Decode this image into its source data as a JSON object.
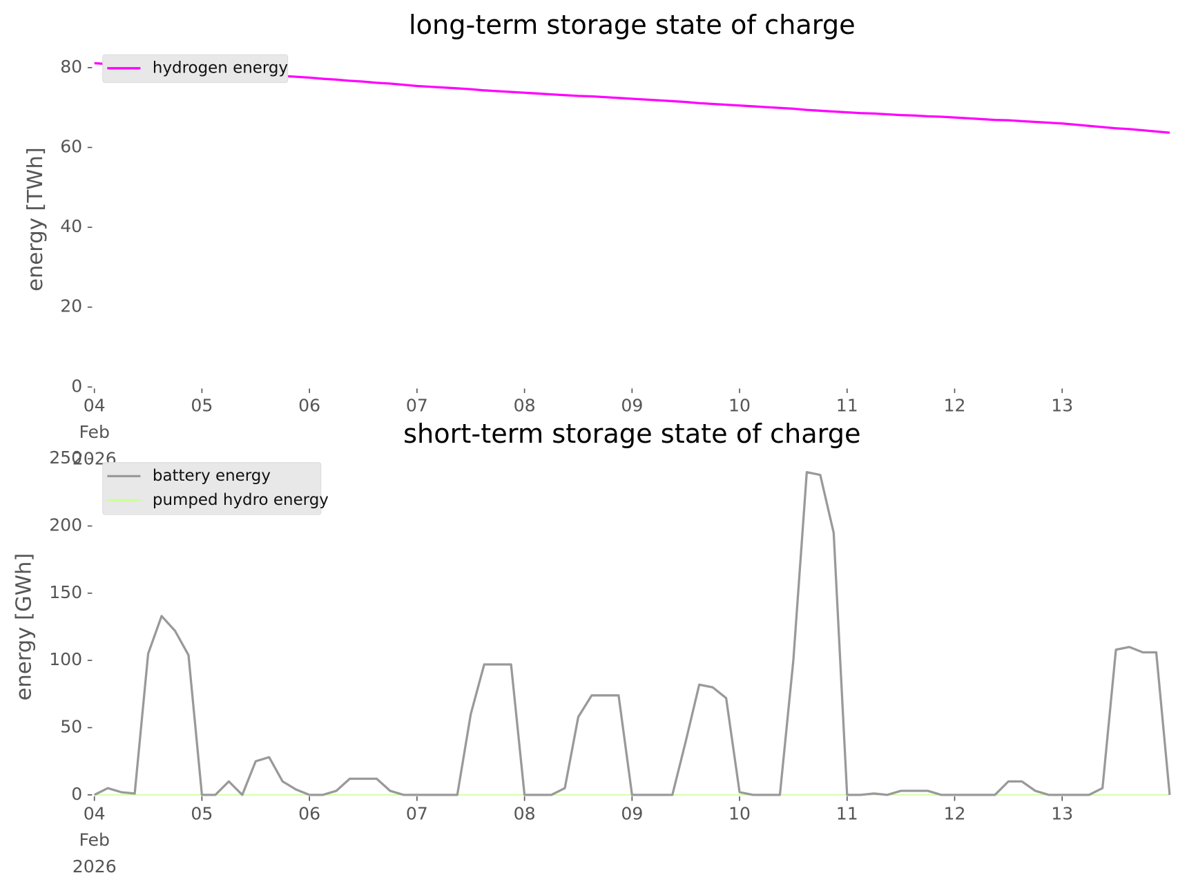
{
  "chart_data": [
    {
      "type": "line",
      "title": "long-term storage state of charge",
      "ylabel": "energy [TWh]",
      "x": [
        "2026-02-04T00:00",
        "2026-02-04T03:00",
        "2026-02-04T06:00",
        "2026-02-04T09:00",
        "2026-02-04T12:00",
        "2026-02-04T15:00",
        "2026-02-04T18:00",
        "2026-02-04T21:00",
        "2026-02-05T00:00",
        "2026-02-05T03:00",
        "2026-02-05T06:00",
        "2026-02-05T09:00",
        "2026-02-05T12:00",
        "2026-02-05T15:00",
        "2026-02-05T18:00",
        "2026-02-05T21:00",
        "2026-02-06T00:00",
        "2026-02-06T03:00",
        "2026-02-06T06:00",
        "2026-02-06T09:00",
        "2026-02-06T12:00",
        "2026-02-06T15:00",
        "2026-02-06T18:00",
        "2026-02-06T21:00",
        "2026-02-07T00:00",
        "2026-02-07T03:00",
        "2026-02-07T06:00",
        "2026-02-07T09:00",
        "2026-02-07T12:00",
        "2026-02-07T15:00",
        "2026-02-07T18:00",
        "2026-02-07T21:00",
        "2026-02-08T00:00",
        "2026-02-08T03:00",
        "2026-02-08T06:00",
        "2026-02-08T09:00",
        "2026-02-08T12:00",
        "2026-02-08T15:00",
        "2026-02-08T18:00",
        "2026-02-08T21:00",
        "2026-02-09T00:00",
        "2026-02-09T03:00",
        "2026-02-09T06:00",
        "2026-02-09T09:00",
        "2026-02-09T12:00",
        "2026-02-09T15:00",
        "2026-02-09T18:00",
        "2026-02-09T21:00",
        "2026-02-10T00:00",
        "2026-02-10T03:00",
        "2026-02-10T06:00",
        "2026-02-10T09:00",
        "2026-02-10T12:00",
        "2026-02-10T15:00",
        "2026-02-10T18:00",
        "2026-02-10T21:00",
        "2026-02-11T00:00",
        "2026-02-11T03:00",
        "2026-02-11T06:00",
        "2026-02-11T09:00",
        "2026-02-11T12:00",
        "2026-02-11T15:00",
        "2026-02-11T18:00",
        "2026-02-11T21:00",
        "2026-02-12T00:00",
        "2026-02-12T03:00",
        "2026-02-12T06:00",
        "2026-02-12T09:00",
        "2026-02-12T12:00",
        "2026-02-12T15:00",
        "2026-02-12T18:00",
        "2026-02-12T21:00",
        "2026-02-13T00:00",
        "2026-02-13T03:00",
        "2026-02-13T06:00",
        "2026-02-13T09:00",
        "2026-02-13T12:00",
        "2026-02-13T15:00",
        "2026-02-13T18:00",
        "2026-02-13T21:00",
        "2026-02-14T00:00"
      ],
      "series": [
        {
          "name": "hydrogen energy",
          "color": "#ff00ff",
          "values": [
            81.1,
            80.9,
            80.6,
            80.4,
            80.2,
            79.9,
            79.7,
            79.4,
            79.2,
            79.0,
            78.8,
            78.6,
            78.4,
            78.1,
            77.9,
            77.7,
            77.5,
            77.2,
            77.0,
            76.7,
            76.5,
            76.2,
            76.0,
            75.7,
            75.4,
            75.2,
            75.0,
            74.8,
            74.6,
            74.3,
            74.1,
            73.9,
            73.7,
            73.5,
            73.3,
            73.1,
            72.9,
            72.8,
            72.6,
            72.4,
            72.2,
            72.0,
            71.8,
            71.6,
            71.4,
            71.1,
            70.9,
            70.7,
            70.5,
            70.3,
            70.1,
            69.9,
            69.7,
            69.4,
            69.2,
            69.0,
            68.8,
            68.6,
            68.5,
            68.3,
            68.1,
            68.0,
            67.8,
            67.7,
            67.5,
            67.3,
            67.1,
            66.9,
            66.8,
            66.6,
            66.4,
            66.2,
            66.0,
            65.7,
            65.4,
            65.1,
            64.8,
            64.6,
            64.3,
            64.0,
            63.7
          ]
        }
      ],
      "xlim": [
        "2026-02-04T00:00",
        "2026-02-14T00:00"
      ],
      "xticks": [
        {
          "value": "2026-02-04T00:00",
          "label": "04 Feb 2026"
        },
        {
          "value": "2026-02-05T00:00",
          "label": "05"
        },
        {
          "value": "2026-02-06T00:00",
          "label": "06"
        },
        {
          "value": "2026-02-07T00:00",
          "label": "07"
        },
        {
          "value": "2026-02-08T00:00",
          "label": "08"
        },
        {
          "value": "2026-02-09T00:00",
          "label": "09"
        },
        {
          "value": "2026-02-10T00:00",
          "label": "10"
        },
        {
          "value": "2026-02-11T00:00",
          "label": "11"
        },
        {
          "value": "2026-02-12T00:00",
          "label": "12"
        },
        {
          "value": "2026-02-13T00:00",
          "label": "13"
        }
      ],
      "ylim": [
        0,
        84
      ],
      "yticks": [
        0,
        20,
        40,
        60,
        80
      ],
      "grid": false,
      "legend": "upper left"
    },
    {
      "type": "line",
      "title": "short-term storage state of charge",
      "ylabel": "energy [GWh]",
      "x": [
        "2026-02-04T00:00",
        "2026-02-04T03:00",
        "2026-02-04T06:00",
        "2026-02-04T09:00",
        "2026-02-04T12:00",
        "2026-02-04T15:00",
        "2026-02-04T18:00",
        "2026-02-04T21:00",
        "2026-02-05T00:00",
        "2026-02-05T03:00",
        "2026-02-05T06:00",
        "2026-02-05T09:00",
        "2026-02-05T12:00",
        "2026-02-05T15:00",
        "2026-02-05T18:00",
        "2026-02-05T21:00",
        "2026-02-06T00:00",
        "2026-02-06T03:00",
        "2026-02-06T06:00",
        "2026-02-06T09:00",
        "2026-02-06T12:00",
        "2026-02-06T15:00",
        "2026-02-06T18:00",
        "2026-02-06T21:00",
        "2026-02-07T00:00",
        "2026-02-07T03:00",
        "2026-02-07T06:00",
        "2026-02-07T09:00",
        "2026-02-07T12:00",
        "2026-02-07T15:00",
        "2026-02-07T18:00",
        "2026-02-07T21:00",
        "2026-02-08T00:00",
        "2026-02-08T03:00",
        "2026-02-08T06:00",
        "2026-02-08T09:00",
        "2026-02-08T12:00",
        "2026-02-08T15:00",
        "2026-02-08T18:00",
        "2026-02-08T21:00",
        "2026-02-09T00:00",
        "2026-02-09T03:00",
        "2026-02-09T06:00",
        "2026-02-09T09:00",
        "2026-02-09T12:00",
        "2026-02-09T15:00",
        "2026-02-09T18:00",
        "2026-02-09T21:00",
        "2026-02-10T00:00",
        "2026-02-10T03:00",
        "2026-02-10T06:00",
        "2026-02-10T09:00",
        "2026-02-10T12:00",
        "2026-02-10T15:00",
        "2026-02-10T18:00",
        "2026-02-10T21:00",
        "2026-02-11T00:00",
        "2026-02-11T03:00",
        "2026-02-11T06:00",
        "2026-02-11T09:00",
        "2026-02-11T12:00",
        "2026-02-11T15:00",
        "2026-02-11T18:00",
        "2026-02-11T21:00",
        "2026-02-12T00:00",
        "2026-02-12T03:00",
        "2026-02-12T06:00",
        "2026-02-12T09:00",
        "2026-02-12T12:00",
        "2026-02-12T15:00",
        "2026-02-12T18:00",
        "2026-02-12T21:00",
        "2026-02-13T00:00",
        "2026-02-13T03:00",
        "2026-02-13T06:00",
        "2026-02-13T09:00",
        "2026-02-13T12:00",
        "2026-02-13T15:00",
        "2026-02-13T18:00",
        "2026-02-13T21:00",
        "2026-02-14T00:00"
      ],
      "series": [
        {
          "name": "battery energy",
          "color": "#999999",
          "values": [
            0,
            5,
            2,
            1,
            105,
            133,
            122,
            104,
            0,
            0,
            10,
            0,
            25,
            28,
            10,
            4,
            0,
            0,
            3,
            12,
            12,
            12,
            3,
            0,
            0,
            0,
            0,
            0,
            60,
            97,
            97,
            97,
            0,
            0,
            0,
            5,
            58,
            74,
            74,
            74,
            0,
            0,
            0,
            0,
            40,
            82,
            80,
            72,
            2,
            0,
            0,
            0,
            100,
            240,
            238,
            195,
            0,
            0,
            1,
            0,
            3,
            3,
            3,
            0,
            0,
            0,
            0,
            0,
            10,
            10,
            3,
            0,
            0,
            0,
            0,
            5,
            108,
            110,
            106,
            106,
            0
          ]
        },
        {
          "name": "pumped hydro energy",
          "color": "#ccff99",
          "values": [
            0,
            0,
            0,
            0,
            0,
            0,
            0,
            0,
            0,
            0,
            0,
            0,
            0,
            0,
            0,
            0,
            0,
            0,
            0,
            0,
            0,
            0,
            0,
            0,
            0,
            0,
            0,
            0,
            0,
            0,
            0,
            0,
            0,
            0,
            0,
            0,
            0,
            0,
            0,
            0,
            0,
            0,
            0,
            0,
            0,
            0,
            0,
            0,
            0,
            0,
            0,
            0,
            0,
            0,
            0,
            0,
            0,
            0,
            0,
            0,
            0,
            0,
            0,
            0,
            0,
            0,
            0,
            0,
            0,
            0,
            0,
            0,
            0,
            0,
            0,
            0,
            0,
            0,
            0,
            0,
            0
          ]
        }
      ],
      "xlim": [
        "2026-02-04T00:00",
        "2026-02-14T00:00"
      ],
      "xticks": [
        {
          "value": "2026-02-04T00:00",
          "label": "04 Feb 2026"
        },
        {
          "value": "2026-02-05T00:00",
          "label": "05"
        },
        {
          "value": "2026-02-06T00:00",
          "label": "06"
        },
        {
          "value": "2026-02-07T00:00",
          "label": "07"
        },
        {
          "value": "2026-02-08T00:00",
          "label": "08"
        },
        {
          "value": "2026-02-09T00:00",
          "label": "09"
        },
        {
          "value": "2026-02-10T00:00",
          "label": "10"
        },
        {
          "value": "2026-02-11T00:00",
          "label": "11"
        },
        {
          "value": "2026-02-12T00:00",
          "label": "12"
        },
        {
          "value": "2026-02-13T00:00",
          "label": "13"
        }
      ],
      "ylim": [
        0,
        250
      ],
      "yticks": [
        0,
        50,
        100,
        150,
        200,
        250
      ],
      "grid": false,
      "legend": "upper left"
    }
  ]
}
